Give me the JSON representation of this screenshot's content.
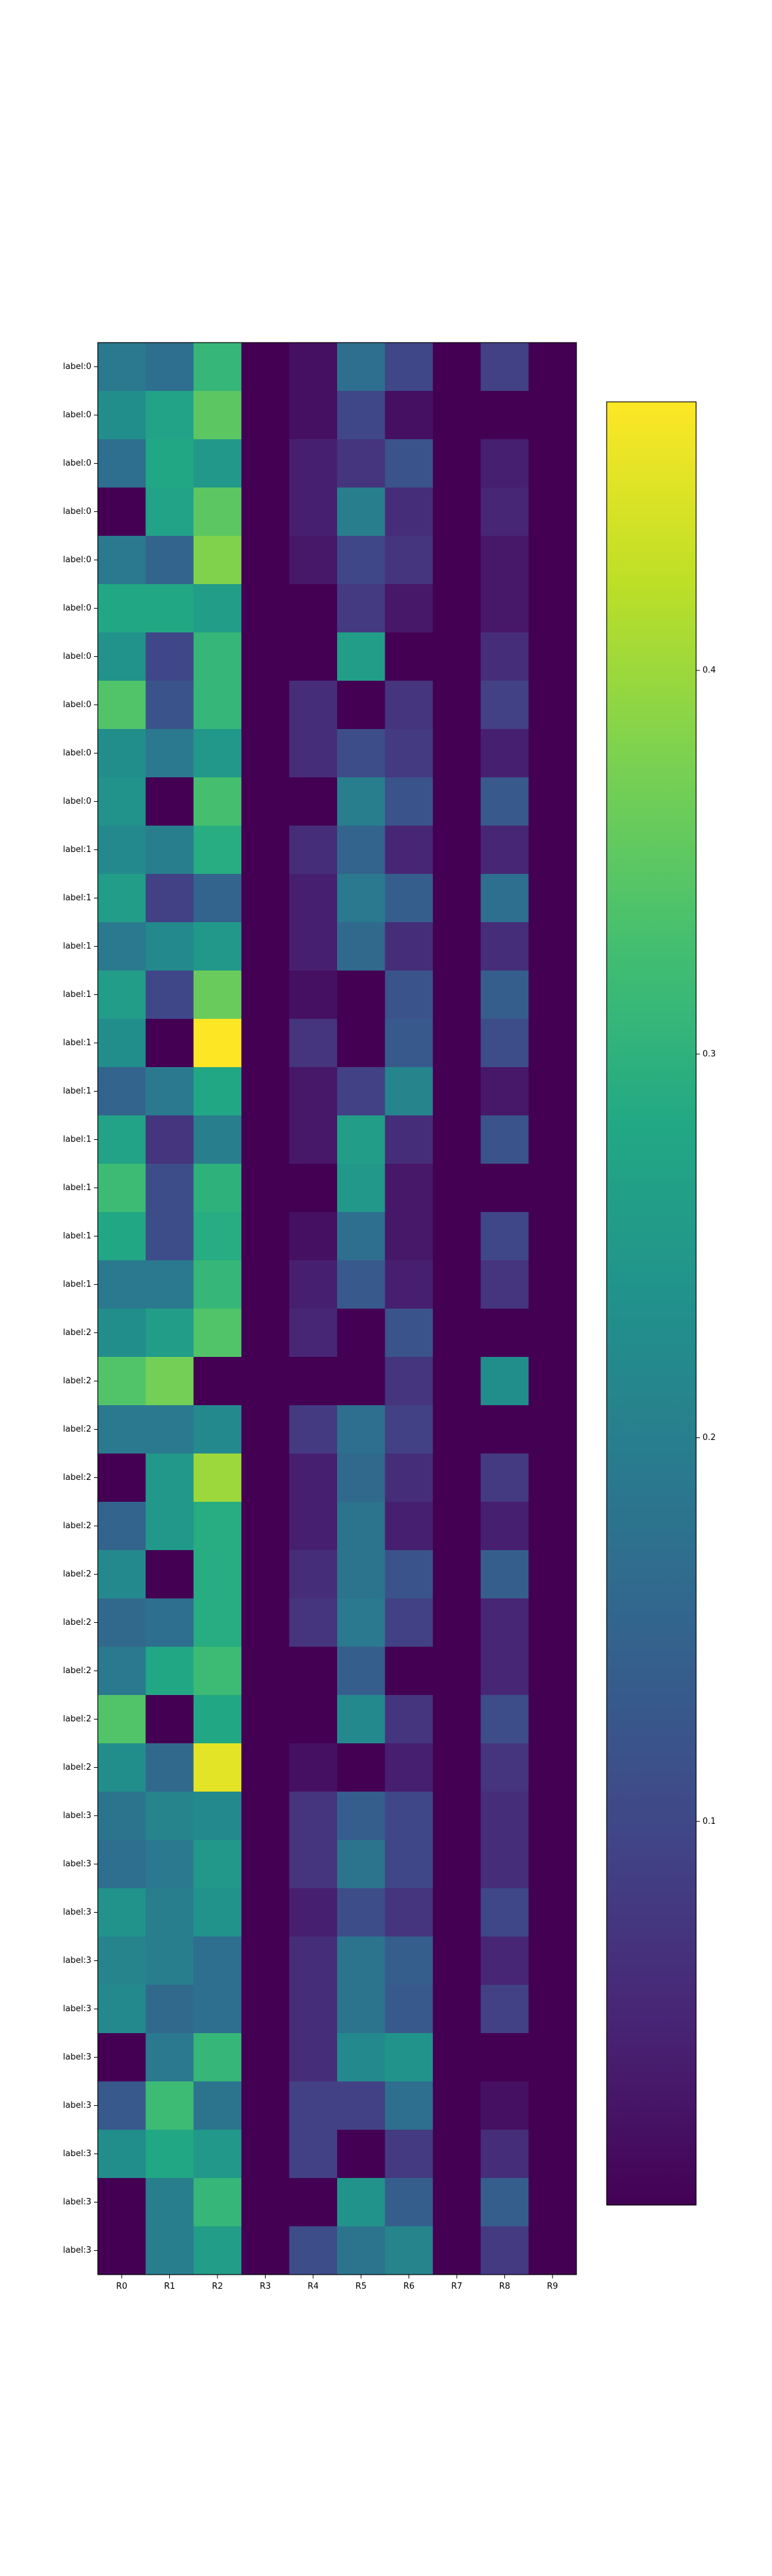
{
  "chart_data": {
    "type": "heatmap",
    "title": "",
    "xlabel": "",
    "ylabel": "",
    "x_labels": [
      "R0",
      "R1",
      "R2",
      "R3",
      "R4",
      "R5",
      "R6",
      "R7",
      "R8",
      "R9"
    ],
    "y_labels": [
      "label:0",
      "label:0",
      "label:0",
      "label:0",
      "label:0",
      "label:0",
      "label:0",
      "label:0",
      "label:0",
      "label:0",
      "label:1",
      "label:1",
      "label:1",
      "label:1",
      "label:1",
      "label:1",
      "label:1",
      "label:1",
      "label:1",
      "label:1",
      "label:2",
      "label:2",
      "label:2",
      "label:2",
      "label:2",
      "label:2",
      "label:2",
      "label:2",
      "label:2",
      "label:2",
      "label:3",
      "label:3",
      "label:3",
      "label:3",
      "label:3",
      "label:3",
      "label:3",
      "label:3",
      "label:3",
      "label:3"
    ],
    "values": [
      [
        0.19,
        0.17,
        0.31,
        0.0,
        0.02,
        0.17,
        0.1,
        0.0,
        0.09,
        0.0
      ],
      [
        0.23,
        0.27,
        0.35,
        0.0,
        0.02,
        0.1,
        0.02,
        0.0,
        0.0,
        0.0
      ],
      [
        0.17,
        0.28,
        0.25,
        0.0,
        0.04,
        0.07,
        0.12,
        0.0,
        0.04,
        0.0
      ],
      [
        0.0,
        0.27,
        0.35,
        0.0,
        0.04,
        0.2,
        0.06,
        0.0,
        0.05,
        0.0
      ],
      [
        0.19,
        0.15,
        0.38,
        0.0,
        0.03,
        0.1,
        0.07,
        0.0,
        0.03,
        0.0
      ],
      [
        0.28,
        0.28,
        0.26,
        0.0,
        0.0,
        0.08,
        0.03,
        0.0,
        0.03,
        0.0
      ],
      [
        0.24,
        0.1,
        0.31,
        0.0,
        0.0,
        0.26,
        0.0,
        0.0,
        0.06,
        0.0
      ],
      [
        0.34,
        0.12,
        0.31,
        0.0,
        0.06,
        0.0,
        0.07,
        0.0,
        0.09,
        0.0
      ],
      [
        0.23,
        0.19,
        0.25,
        0.0,
        0.06,
        0.11,
        0.08,
        0.0,
        0.04,
        0.0
      ],
      [
        0.24,
        0.0,
        0.33,
        0.0,
        0.0,
        0.2,
        0.12,
        0.0,
        0.13,
        0.0
      ],
      [
        0.22,
        0.2,
        0.29,
        0.0,
        0.06,
        0.15,
        0.05,
        0.0,
        0.05,
        0.0
      ],
      [
        0.26,
        0.09,
        0.15,
        0.0,
        0.04,
        0.19,
        0.14,
        0.0,
        0.17,
        0.0
      ],
      [
        0.19,
        0.22,
        0.25,
        0.0,
        0.04,
        0.16,
        0.06,
        0.0,
        0.06,
        0.0
      ],
      [
        0.26,
        0.1,
        0.36,
        0.0,
        0.02,
        0.0,
        0.12,
        0.0,
        0.14,
        0.0
      ],
      [
        0.23,
        0.0,
        0.47,
        0.0,
        0.07,
        0.0,
        0.13,
        0.0,
        0.11,
        0.0
      ],
      [
        0.15,
        0.19,
        0.28,
        0.0,
        0.03,
        0.09,
        0.21,
        0.0,
        0.03,
        0.0
      ],
      [
        0.27,
        0.07,
        0.2,
        0.0,
        0.03,
        0.26,
        0.06,
        0.0,
        0.12,
        0.0
      ],
      [
        0.32,
        0.11,
        0.3,
        0.0,
        0.0,
        0.25,
        0.03,
        0.0,
        0.0,
        0.0
      ],
      [
        0.28,
        0.11,
        0.29,
        0.0,
        0.02,
        0.17,
        0.03,
        0.0,
        0.1,
        0.0
      ],
      [
        0.19,
        0.19,
        0.31,
        0.0,
        0.04,
        0.13,
        0.04,
        0.0,
        0.07,
        0.0
      ],
      [
        0.23,
        0.26,
        0.34,
        0.0,
        0.05,
        0.0,
        0.12,
        0.0,
        0.0,
        0.0
      ],
      [
        0.34,
        0.37,
        0.0,
        0.0,
        0.0,
        0.0,
        0.07,
        0.0,
        0.23,
        0.0
      ],
      [
        0.19,
        0.19,
        0.22,
        0.0,
        0.08,
        0.17,
        0.09,
        0.0,
        0.0,
        0.0
      ],
      [
        0.0,
        0.25,
        0.4,
        0.0,
        0.04,
        0.16,
        0.06,
        0.0,
        0.08,
        0.0
      ],
      [
        0.15,
        0.25,
        0.29,
        0.0,
        0.04,
        0.18,
        0.04,
        0.0,
        0.04,
        0.0
      ],
      [
        0.22,
        0.0,
        0.29,
        0.0,
        0.06,
        0.18,
        0.12,
        0.0,
        0.14,
        0.0
      ],
      [
        0.16,
        0.17,
        0.29,
        0.0,
        0.07,
        0.19,
        0.09,
        0.0,
        0.05,
        0.0
      ],
      [
        0.19,
        0.28,
        0.32,
        0.0,
        0.0,
        0.14,
        0.0,
        0.0,
        0.05,
        0.0
      ],
      [
        0.34,
        0.0,
        0.28,
        0.0,
        0.0,
        0.22,
        0.07,
        0.0,
        0.11,
        0.0
      ],
      [
        0.23,
        0.16,
        0.45,
        0.0,
        0.02,
        0.0,
        0.04,
        0.0,
        0.07,
        0.0
      ],
      [
        0.18,
        0.21,
        0.22,
        0.0,
        0.07,
        0.14,
        0.1,
        0.0,
        0.06,
        0.0
      ],
      [
        0.17,
        0.19,
        0.25,
        0.0,
        0.07,
        0.18,
        0.1,
        0.0,
        0.06,
        0.0
      ],
      [
        0.24,
        0.2,
        0.24,
        0.0,
        0.04,
        0.11,
        0.07,
        0.0,
        0.1,
        0.0
      ],
      [
        0.21,
        0.2,
        0.17,
        0.0,
        0.06,
        0.18,
        0.14,
        0.0,
        0.05,
        0.0
      ],
      [
        0.22,
        0.16,
        0.17,
        0.0,
        0.06,
        0.18,
        0.13,
        0.0,
        0.09,
        0.0
      ],
      [
        0.0,
        0.19,
        0.31,
        0.0,
        0.06,
        0.22,
        0.24,
        0.0,
        0.0,
        0.0
      ],
      [
        0.13,
        0.32,
        0.18,
        0.0,
        0.09,
        0.09,
        0.17,
        0.0,
        0.02,
        0.0
      ],
      [
        0.23,
        0.28,
        0.25,
        0.0,
        0.09,
        0.0,
        0.08,
        0.0,
        0.06,
        0.0
      ],
      [
        0.0,
        0.2,
        0.31,
        0.0,
        0.0,
        0.24,
        0.14,
        0.0,
        0.14,
        0.0
      ],
      [
        0.0,
        0.2,
        0.26,
        0.0,
        0.11,
        0.18,
        0.21,
        0.0,
        0.08,
        0.0
      ]
    ],
    "colormap": "viridis",
    "vmin": 0.0,
    "vmax": 0.47,
    "colorbar_ticks": [
      0.1,
      0.2,
      0.3,
      0.4
    ],
    "colorbar_tick_labels": [
      "0.1",
      "0.2",
      "0.3",
      "0.4"
    ],
    "grid": false,
    "legend": "colorbar-right"
  }
}
